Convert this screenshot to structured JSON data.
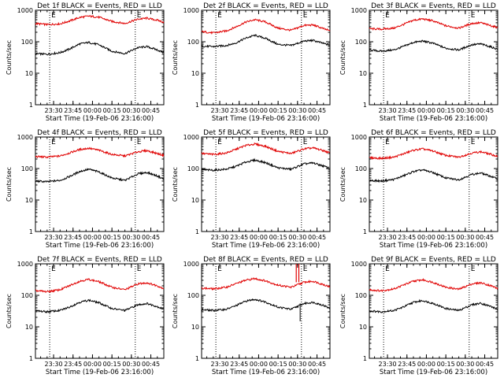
{
  "colors": {
    "events": "#000000",
    "lld": "#e00000",
    "background": "#ffffff",
    "marker": "#000000"
  },
  "chart_data": [
    {
      "type": "line",
      "title": "Det 1f BLACK = Events, RED = LLD",
      "xlabel": "Start Time (19-Feb-06 23:16:00)",
      "ylabel": "Counts/sec",
      "yscale": "log",
      "ylim": [
        1,
        1000
      ],
      "yticks": [
        "1",
        "10",
        "100",
        "1000"
      ],
      "xlim": [
        "23:16:00",
        "00:55:00"
      ],
      "xticks": [
        "23:30",
        "23:45",
        "00:00",
        "00:15",
        "00:30",
        "00:45"
      ],
      "markers": [
        {
          "time": "23:27:00",
          "label": "E"
        },
        {
          "time": "00:33:00",
          "label": "E"
        }
      ],
      "series": [
        {
          "key": "lld",
          "x": [
            "23:16",
            "23:25",
            "23:35",
            "23:42",
            "23:50",
            "23:57",
            "00:05",
            "00:15",
            "00:25",
            "00:35",
            "00:42",
            "00:50",
            "00:55"
          ],
          "y": [
            380,
            350,
            370,
            450,
            590,
            650,
            600,
            440,
            380,
            520,
            560,
            480,
            420
          ]
        },
        {
          "key": "events",
          "x": [
            "23:16",
            "23:25",
            "23:35",
            "23:42",
            "23:50",
            "23:57",
            "00:05",
            "00:15",
            "00:25",
            "00:35",
            "00:42",
            "00:50",
            "00:55"
          ],
          "y": [
            42,
            40,
            45,
            58,
            85,
            95,
            80,
            50,
            42,
            65,
            70,
            55,
            45
          ]
        }
      ]
    },
    {
      "type": "line",
      "title": "Det 2f BLACK = Events, RED = LLD",
      "xlabel": "Start Time (19-Feb-06 23:16:00)",
      "ylabel": "Counts/sec",
      "yscale": "log",
      "ylim": [
        1,
        1000
      ],
      "yticks": [
        "1",
        "10",
        "100",
        "1000"
      ],
      "xlim": [
        "23:16:00",
        "00:55:00"
      ],
      "xticks": [
        "23:30",
        "23:45",
        "00:00",
        "00:15",
        "00:30",
        "00:45"
      ],
      "markers": [
        {
          "time": "23:27:00",
          "label": "E"
        },
        {
          "time": "00:33:00",
          "label": "E"
        }
      ],
      "series": [
        {
          "key": "lld",
          "x": [
            "23:16",
            "23:25",
            "23:35",
            "23:42",
            "23:50",
            "23:57",
            "00:05",
            "00:15",
            "00:25",
            "00:35",
            "00:42",
            "00:50",
            "00:55"
          ],
          "y": [
            210,
            190,
            220,
            290,
            420,
            500,
            430,
            270,
            230,
            330,
            340,
            260,
            220
          ]
        },
        {
          "key": "events",
          "x": [
            "23:16",
            "23:25",
            "23:35",
            "23:42",
            "23:50",
            "23:57",
            "00:05",
            "00:15",
            "00:25",
            "00:35",
            "00:42",
            "00:50",
            "00:55"
          ],
          "y": [
            72,
            70,
            76,
            90,
            130,
            160,
            130,
            82,
            76,
            105,
            110,
            88,
            78
          ]
        }
      ]
    },
    {
      "type": "line",
      "title": "Det 3f BLACK = Events, RED = LLD",
      "xlabel": "Start Time (19-Feb-06 23:16:00)",
      "ylabel": "Counts/sec",
      "yscale": "log",
      "ylim": [
        1,
        1000
      ],
      "yticks": [
        "1",
        "10",
        "100",
        "1000"
      ],
      "xlim": [
        "23:16:00",
        "00:55:00"
      ],
      "xticks": [
        "23:30",
        "23:45",
        "00:00",
        "00:15",
        "00:30",
        "00:45"
      ],
      "markers": [
        {
          "time": "23:27:00",
          "label": "E"
        },
        {
          "time": "00:33:00",
          "label": "E"
        }
      ],
      "series": [
        {
          "key": "lld",
          "x": [
            "23:16",
            "23:25",
            "23:35",
            "23:42",
            "23:50",
            "23:57",
            "00:05",
            "00:15",
            "00:25",
            "00:35",
            "00:42",
            "00:50",
            "00:55"
          ],
          "y": [
            260,
            250,
            270,
            350,
            480,
            530,
            460,
            320,
            270,
            380,
            400,
            320,
            280
          ]
        },
        {
          "key": "events",
          "x": [
            "23:16",
            "23:25",
            "23:35",
            "23:42",
            "23:50",
            "23:57",
            "00:05",
            "00:15",
            "00:25",
            "00:35",
            "00:42",
            "00:50",
            "00:55"
          ],
          "y": [
            55,
            50,
            55,
            70,
            95,
            105,
            90,
            62,
            55,
            80,
            85,
            68,
            58
          ]
        }
      ]
    },
    {
      "type": "line",
      "title": "Det 4f BLACK = Events, RED = LLD",
      "xlabel": "Start Time (19-Feb-06 23:16:00)",
      "ylabel": "Counts/sec",
      "yscale": "log",
      "ylim": [
        1,
        1000
      ],
      "yticks": [
        "1",
        "10",
        "100",
        "1000"
      ],
      "xlim": [
        "23:16:00",
        "00:55:00"
      ],
      "xticks": [
        "23:30",
        "23:45",
        "00:00",
        "00:15",
        "00:30",
        "00:45"
      ],
      "markers": [
        {
          "time": "23:27:00",
          "label": "E"
        },
        {
          "time": "00:33:00",
          "label": "E"
        }
      ],
      "series": [
        {
          "key": "lld",
          "x": [
            "23:16",
            "23:25",
            "23:35",
            "23:42",
            "23:50",
            "23:57",
            "00:05",
            "00:15",
            "00:25",
            "00:35",
            "00:42",
            "00:50",
            "00:55"
          ],
          "y": [
            240,
            230,
            250,
            310,
            400,
            440,
            380,
            280,
            250,
            340,
            370,
            300,
            260
          ]
        },
        {
          "key": "events",
          "x": [
            "23:16",
            "23:25",
            "23:35",
            "23:42",
            "23:50",
            "23:57",
            "00:05",
            "00:15",
            "00:25",
            "00:35",
            "00:42",
            "00:50",
            "00:55"
          ],
          "y": [
            40,
            38,
            42,
            55,
            80,
            95,
            78,
            50,
            42,
            68,
            75,
            58,
            46
          ]
        }
      ]
    },
    {
      "type": "line",
      "title": "Det 5f BLACK = Events, RED = LLD",
      "xlabel": "Start Time (19-Feb-06 23:16:00)",
      "ylabel": "Counts/sec",
      "yscale": "log",
      "ylim": [
        1,
        1000
      ],
      "yticks": [
        "1",
        "10",
        "100",
        "1000"
      ],
      "xlim": [
        "23:16:00",
        "00:55:00"
      ],
      "xticks": [
        "23:30",
        "23:45",
        "00:00",
        "00:15",
        "00:30",
        "00:45"
      ],
      "markers": [
        {
          "time": "23:27:00",
          "label": "E"
        },
        {
          "time": "00:33:00",
          "label": "E"
        }
      ],
      "series": [
        {
          "key": "lld",
          "x": [
            "23:16",
            "23:25",
            "23:35",
            "23:42",
            "23:50",
            "23:57",
            "00:05",
            "00:15",
            "00:25",
            "00:35",
            "00:42",
            "00:50",
            "00:55"
          ],
          "y": [
            300,
            280,
            310,
            400,
            540,
            600,
            510,
            350,
            300,
            420,
            450,
            370,
            310
          ]
        },
        {
          "key": "events",
          "x": [
            "23:16",
            "23:25",
            "23:35",
            "23:42",
            "23:50",
            "23:57",
            "00:05",
            "00:15",
            "00:25",
            "00:35",
            "00:42",
            "00:50",
            "00:55"
          ],
          "y": [
            92,
            88,
            95,
            115,
            160,
            185,
            155,
            105,
            95,
            140,
            150,
            120,
            100
          ]
        }
      ]
    },
    {
      "type": "line",
      "title": "Det 6f BLACK = Events, RED = LLD",
      "xlabel": "Start Time (19-Feb-06 23:16:00)",
      "ylabel": "Counts/sec",
      "yscale": "log",
      "ylim": [
        1,
        1000
      ],
      "yticks": [
        "1",
        "10",
        "100",
        "1000"
      ],
      "xlim": [
        "23:16:00",
        "00:55:00"
      ],
      "xticks": [
        "23:30",
        "23:45",
        "00:00",
        "00:15",
        "00:30",
        "00:45"
      ],
      "markers": [
        {
          "time": "23:27:00",
          "label": "E"
        },
        {
          "time": "00:33:00",
          "label": "E"
        }
      ],
      "series": [
        {
          "key": "lld",
          "x": [
            "23:16",
            "23:25",
            "23:35",
            "23:42",
            "23:50",
            "23:57",
            "00:05",
            "00:15",
            "00:25",
            "00:35",
            "00:42",
            "00:50",
            "00:55"
          ],
          "y": [
            220,
            210,
            230,
            290,
            380,
            420,
            360,
            260,
            230,
            310,
            340,
            280,
            240
          ]
        },
        {
          "key": "events",
          "x": [
            "23:16",
            "23:25",
            "23:35",
            "23:42",
            "23:50",
            "23:57",
            "00:05",
            "00:15",
            "00:25",
            "00:35",
            "00:42",
            "00:50",
            "00:55"
          ],
          "y": [
            42,
            40,
            45,
            58,
            80,
            90,
            75,
            50,
            44,
            65,
            72,
            56,
            46
          ]
        }
      ]
    },
    {
      "type": "line",
      "title": "Det 7f BLACK = Events, RED = LLD",
      "xlabel": "Start Time (19-Feb-06 23:16:00)",
      "ylabel": "Counts/sec",
      "yscale": "log",
      "ylim": [
        1,
        1000
      ],
      "yticks": [
        "1",
        "10",
        "100",
        "1000"
      ],
      "xlim": [
        "23:16:00",
        "00:55:00"
      ],
      "xticks": [
        "23:30",
        "23:45",
        "00:00",
        "00:15",
        "00:30",
        "00:45"
      ],
      "markers": [
        {
          "time": "23:27:00",
          "label": "E"
        },
        {
          "time": "00:33:00",
          "label": "E"
        }
      ],
      "series": [
        {
          "key": "lld",
          "x": [
            "23:16",
            "23:25",
            "23:35",
            "23:42",
            "23:50",
            "23:57",
            "00:05",
            "00:15",
            "00:25",
            "00:35",
            "00:42",
            "00:50",
            "00:55"
          ],
          "y": [
            140,
            130,
            150,
            200,
            280,
            320,
            270,
            180,
            150,
            230,
            250,
            200,
            165
          ]
        },
        {
          "key": "events",
          "x": [
            "23:16",
            "23:25",
            "23:35",
            "23:42",
            "23:50",
            "23:57",
            "00:05",
            "00:15",
            "00:25",
            "00:35",
            "00:42",
            "00:50",
            "00:55"
          ],
          "y": [
            32,
            30,
            33,
            42,
            60,
            70,
            58,
            38,
            33,
            50,
            55,
            44,
            36
          ]
        }
      ]
    },
    {
      "type": "line",
      "title": "Det 8f BLACK = Events, RED = LLD",
      "xlabel": "Start Time (19-Feb-06 23:16:00)",
      "ylabel": "Counts/sec",
      "yscale": "log",
      "ylim": [
        1,
        1000
      ],
      "yticks": [
        "1",
        "10",
        "100",
        "1000"
      ],
      "xlim": [
        "23:16:00",
        "00:55:00"
      ],
      "xticks": [
        "23:30",
        "23:45",
        "00:00",
        "00:15",
        "00:30",
        "00:45"
      ],
      "markers": [
        {
          "time": "23:27:00",
          "label": "E"
        },
        {
          "time": "00:33:00",
          "label": "E"
        }
      ],
      "spikes": [
        {
          "time": "00:29:00",
          "to": 1000
        },
        {
          "time": "00:31:00",
          "to": 1000
        }
      ],
      "dips": [
        {
          "time": "00:32:00",
          "to": 15
        }
      ],
      "series": [
        {
          "key": "lld",
          "x": [
            "23:16",
            "23:25",
            "23:35",
            "23:42",
            "23:50",
            "23:57",
            "00:05",
            "00:15",
            "00:25",
            "00:35",
            "00:42",
            "00:50",
            "00:55"
          ],
          "y": [
            170,
            160,
            180,
            230,
            300,
            340,
            290,
            210,
            180,
            260,
            280,
            220,
            185
          ]
        },
        {
          "key": "events",
          "x": [
            "23:16",
            "23:25",
            "23:35",
            "23:42",
            "23:50",
            "23:57",
            "00:05",
            "00:15",
            "00:25",
            "00:35",
            "00:42",
            "00:50",
            "00:55"
          ],
          "y": [
            35,
            33,
            36,
            46,
            65,
            75,
            62,
            42,
            36,
            55,
            60,
            48,
            38
          ]
        }
      ]
    },
    {
      "type": "line",
      "title": "Det 9f BLACK = Events, RED = LLD",
      "xlabel": "Start Time (19-Feb-06 23:16:00)",
      "ylabel": "Counts/sec",
      "yscale": "log",
      "ylim": [
        1,
        1000
      ],
      "yticks": [
        "1",
        "10",
        "100",
        "1000"
      ],
      "xlim": [
        "23:16:00",
        "00:55:00"
      ],
      "xticks": [
        "23:30",
        "23:45",
        "00:00",
        "00:15",
        "00:30",
        "00:45"
      ],
      "markers": [
        {
          "time": "23:27:00",
          "label": "E"
        },
        {
          "time": "00:33:00",
          "label": "E"
        }
      ],
      "series": [
        {
          "key": "lld",
          "x": [
            "23:16",
            "23:25",
            "23:35",
            "23:42",
            "23:50",
            "23:57",
            "00:05",
            "00:15",
            "00:25",
            "00:35",
            "00:42",
            "00:50",
            "00:55"
          ],
          "y": [
            150,
            140,
            160,
            210,
            280,
            310,
            260,
            180,
            155,
            230,
            250,
            200,
            165
          ]
        },
        {
          "key": "events",
          "x": [
            "23:16",
            "23:25",
            "23:35",
            "23:42",
            "23:50",
            "23:57",
            "00:05",
            "00:15",
            "00:25",
            "00:35",
            "00:42",
            "00:50",
            "00:55"
          ],
          "y": [
            32,
            30,
            33,
            42,
            60,
            68,
            56,
            38,
            33,
            50,
            56,
            44,
            35
          ]
        }
      ]
    }
  ]
}
